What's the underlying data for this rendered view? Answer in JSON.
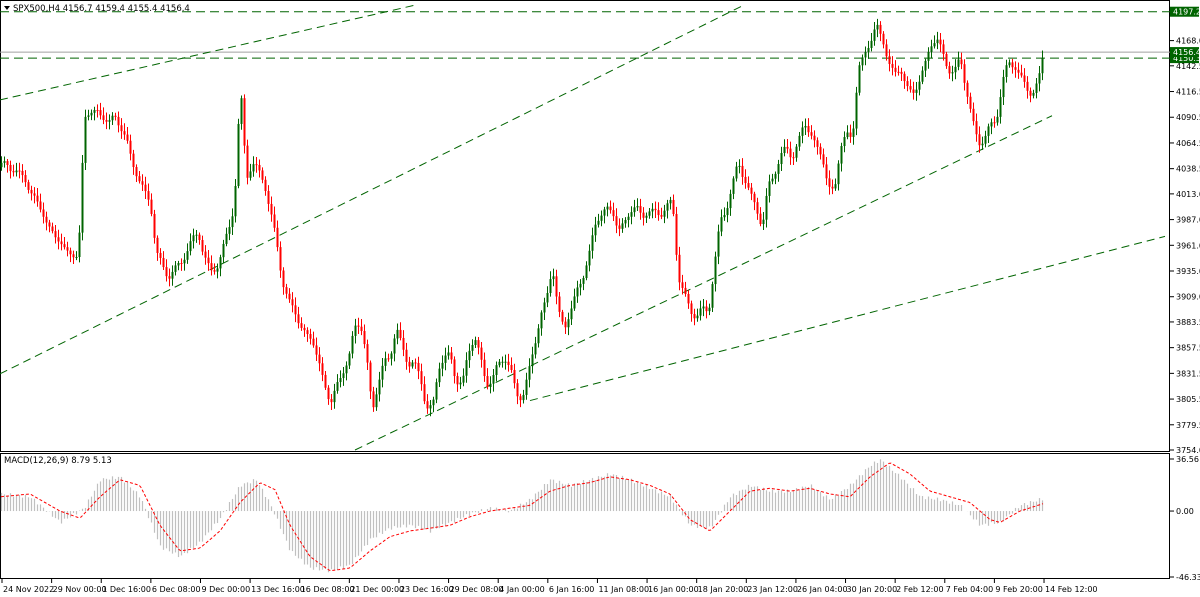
{
  "symbol_info": "SPX500,H4  4156.7 4159.4 4155.4 4156.4",
  "macd_label": "MACD(12,26,9) 8.79 5.13",
  "colors": {
    "bull": "#006400",
    "bear": "#ff0000",
    "trendline": "#006400",
    "hline": "#006400",
    "price_line": "#a0a0a0",
    "price_badge": "#006400",
    "macd_hist": "#c0c0c0",
    "macd_signal": "#ff0000"
  },
  "chart_data": {
    "type": "candlestick",
    "title": "SPX500,H4",
    "price_axis": {
      "ticks": [
        "4168.0",
        "4142.5",
        "4116.5",
        "4090.5",
        "4064.5",
        "4038.5",
        "4013.0",
        "3987.0",
        "3961.0",
        "3935.0",
        "3909.0",
        "3883.5",
        "3857.5",
        "3831.5",
        "3805.5",
        "3779.5",
        "3754.0"
      ],
      "range": [
        3754.0,
        4204.0
      ]
    },
    "horizontal_levels": [
      {
        "value": 4197.2,
        "label": "4197.2"
      },
      {
        "value": 4150.3,
        "label": "4150.3"
      }
    ],
    "current_price": {
      "value": 4156.4,
      "label": "4156.4"
    },
    "time_axis": [
      "24 Nov 2022",
      "29 Nov 00:00",
      "1 Dec 16:00",
      "6 Dec 08:00",
      "9 Dec 00:00",
      "13 Dec 16:00",
      "16 Dec 08:00",
      "21 Dec 00:00",
      "23 Dec 16:00",
      "29 Dec 08:00",
      "4 Jan 00:00",
      "6 Jan 16:00",
      "11 Jan 08:00",
      "16 Jan 00:00",
      "18 Jan 20:00",
      "23 Jan 12:00",
      "26 Jan 04:00",
      "30 Jan 20:00",
      "2 Feb 12:00",
      "7 Feb 04:00",
      "9 Feb 20:00",
      "14 Feb 12:00"
    ],
    "close_path": [
      [
        0,
        4040
      ],
      [
        6,
        4044
      ],
      [
        12,
        4038
      ],
      [
        18,
        4033
      ],
      [
        24,
        4030
      ],
      [
        30,
        4015
      ],
      [
        36,
        4005
      ],
      [
        42,
        3995
      ],
      [
        48,
        3980
      ],
      [
        54,
        3970
      ],
      [
        60,
        3965
      ],
      [
        66,
        3955
      ],
      [
        72,
        3950
      ],
      [
        78,
        3950
      ],
      [
        84,
        4090
      ],
      [
        90,
        4095
      ],
      [
        96,
        4098
      ],
      [
        102,
        4090
      ],
      [
        108,
        4085
      ],
      [
        114,
        4093
      ],
      [
        120,
        4080
      ],
      [
        126,
        4068
      ],
      [
        132,
        4045
      ],
      [
        138,
        4028
      ],
      [
        144,
        4015
      ],
      [
        150,
        4005
      ],
      [
        156,
        3953
      ],
      [
        162,
        3940
      ],
      [
        168,
        3930
      ],
      [
        174,
        3935
      ],
      [
        180,
        3943
      ],
      [
        186,
        3955
      ],
      [
        192,
        3965
      ],
      [
        198,
        3975
      ],
      [
        204,
        3950
      ],
      [
        210,
        3932
      ],
      [
        216,
        3940
      ],
      [
        222,
        3955
      ],
      [
        228,
        3975
      ],
      [
        234,
        4005
      ],
      [
        240,
        4120
      ],
      [
        246,
        4030
      ],
      [
        252,
        4045
      ],
      [
        258,
        4035
      ],
      [
        264,
        4025
      ],
      [
        270,
        3995
      ],
      [
        276,
        3965
      ],
      [
        282,
        3925
      ],
      [
        288,
        3905
      ],
      [
        294,
        3895
      ],
      [
        300,
        3880
      ],
      [
        306,
        3870
      ],
      [
        312,
        3865
      ],
      [
        318,
        3845
      ],
      [
        324,
        3820
      ],
      [
        330,
        3800
      ],
      [
        336,
        3820
      ],
      [
        342,
        3830
      ],
      [
        348,
        3845
      ],
      [
        354,
        3880
      ],
      [
        360,
        3880
      ],
      [
        366,
        3850
      ],
      [
        372,
        3795
      ],
      [
        378,
        3820
      ],
      [
        384,
        3845
      ],
      [
        390,
        3850
      ],
      [
        396,
        3875
      ],
      [
        402,
        3860
      ],
      [
        408,
        3840
      ],
      [
        414,
        3840
      ],
      [
        420,
        3830
      ],
      [
        426,
        3795
      ],
      [
        432,
        3795
      ],
      [
        438,
        3840
      ],
      [
        444,
        3845
      ],
      [
        450,
        3850
      ],
      [
        456,
        3825
      ],
      [
        462,
        3818
      ],
      [
        468,
        3855
      ],
      [
        474,
        3870
      ],
      [
        480,
        3845
      ],
      [
        486,
        3822
      ],
      [
        492,
        3825
      ],
      [
        498,
        3840
      ],
      [
        504,
        3850
      ],
      [
        510,
        3835
      ],
      [
        516,
        3810
      ],
      [
        522,
        3808
      ],
      [
        528,
        3830
      ],
      [
        534,
        3860
      ],
      [
        540,
        3890
      ],
      [
        546,
        3905
      ],
      [
        552,
        3940
      ],
      [
        558,
        3895
      ],
      [
        564,
        3875
      ],
      [
        570,
        3895
      ],
      [
        576,
        3915
      ],
      [
        582,
        3925
      ],
      [
        588,
        3950
      ],
      [
        594,
        3980
      ],
      [
        600,
        3990
      ],
      [
        606,
        4000
      ],
      [
        612,
        3995
      ],
      [
        618,
        3975
      ],
      [
        624,
        3985
      ],
      [
        630,
        3995
      ],
      [
        636,
        4000
      ],
      [
        642,
        3990
      ],
      [
        648,
        3995
      ],
      [
        654,
        3995
      ],
      [
        660,
        3992
      ],
      [
        666,
        4000
      ],
      [
        672,
        4005
      ],
      [
        678,
        3930
      ],
      [
        684,
        3910
      ],
      [
        690,
        3895
      ],
      [
        696,
        3890
      ],
      [
        702,
        3895
      ],
      [
        708,
        3895
      ],
      [
        714,
        3940
      ],
      [
        720,
        3985
      ],
      [
        726,
        4000
      ],
      [
        732,
        4020
      ],
      [
        738,
        4045
      ],
      [
        744,
        4030
      ],
      [
        750,
        4010
      ],
      [
        756,
        4000
      ],
      [
        762,
        3980
      ],
      [
        768,
        4020
      ],
      [
        774,
        4035
      ],
      [
        780,
        4050
      ],
      [
        786,
        4060
      ],
      [
        792,
        4050
      ],
      [
        798,
        4065
      ],
      [
        804,
        4085
      ],
      [
        810,
        4075
      ],
      [
        816,
        4060
      ],
      [
        822,
        4050
      ],
      [
        828,
        4020
      ],
      [
        834,
        4015
      ],
      [
        840,
        4060
      ],
      [
        846,
        4075
      ],
      [
        852,
        4068
      ],
      [
        858,
        4140
      ],
      [
        864,
        4155
      ],
      [
        870,
        4165
      ],
      [
        876,
        4185
      ],
      [
        882,
        4170
      ],
      [
        888,
        4145
      ],
      [
        894,
        4135
      ],
      [
        900,
        4140
      ],
      [
        906,
        4120
      ],
      [
        912,
        4115
      ],
      [
        918,
        4125
      ],
      [
        924,
        4140
      ],
      [
        930,
        4165
      ],
      [
        936,
        4170
      ],
      [
        942,
        4155
      ],
      [
        948,
        4140
      ],
      [
        954,
        4135
      ],
      [
        960,
        4150
      ],
      [
        966,
        4120
      ],
      [
        972,
        4085
      ],
      [
        978,
        4065
      ],
      [
        984,
        4070
      ],
      [
        990,
        4080
      ],
      [
        996,
        4090
      ],
      [
        1002,
        4125
      ],
      [
        1008,
        4145
      ],
      [
        1014,
        4145
      ],
      [
        1020,
        4130
      ],
      [
        1026,
        4120
      ],
      [
        1032,
        4115
      ],
      [
        1038,
        4125
      ],
      [
        1043,
        4156
      ]
    ],
    "trendlines": [
      {
        "p1": [
          0,
          4108
        ],
        "p2": [
          537,
          4232
        ]
      },
      {
        "p1": [
          0,
          3831
        ],
        "p2": [
          780,
          4222
        ]
      },
      {
        "p1": [
          355,
          3754
        ],
        "p2": [
          1052,
          4092
        ]
      },
      {
        "p1": [
          530,
          3804
        ],
        "p2": [
          1165,
          3970
        ]
      }
    ],
    "macd": {
      "range": [
        -46.33,
        36.56
      ],
      "ticks": [
        "36.56",
        "0.00",
        "-46.33"
      ],
      "hist_path": [
        [
          0,
          12
        ],
        [
          30,
          10
        ],
        [
          60,
          -8
        ],
        [
          84,
          2
        ],
        [
          100,
          22
        ],
        [
          120,
          24
        ],
        [
          140,
          10
        ],
        [
          160,
          -25
        ],
        [
          180,
          -32
        ],
        [
          200,
          -22
        ],
        [
          220,
          -5
        ],
        [
          240,
          18
        ],
        [
          256,
          22
        ],
        [
          270,
          5
        ],
        [
          290,
          -28
        ],
        [
          310,
          -40
        ],
        [
          330,
          -42
        ],
        [
          350,
          -38
        ],
        [
          370,
          -20
        ],
        [
          390,
          -12
        ],
        [
          410,
          -10
        ],
        [
          430,
          -14
        ],
        [
          450,
          -8
        ],
        [
          470,
          -2
        ],
        [
          490,
          2
        ],
        [
          510,
          0
        ],
        [
          530,
          8
        ],
        [
          550,
          22
        ],
        [
          570,
          18
        ],
        [
          590,
          22
        ],
        [
          610,
          26
        ],
        [
          630,
          22
        ],
        [
          650,
          16
        ],
        [
          670,
          10
        ],
        [
          690,
          -10
        ],
        [
          710,
          -12
        ],
        [
          730,
          10
        ],
        [
          750,
          18
        ],
        [
          770,
          14
        ],
        [
          790,
          14
        ],
        [
          810,
          18
        ],
        [
          830,
          8
        ],
        [
          850,
          18
        ],
        [
          870,
          32
        ],
        [
          880,
          36
        ],
        [
          900,
          24
        ],
        [
          920,
          10
        ],
        [
          940,
          8
        ],
        [
          960,
          4
        ],
        [
          980,
          -10
        ],
        [
          1000,
          -8
        ],
        [
          1020,
          4
        ],
        [
          1043,
          8.79
        ]
      ],
      "signal_path": [
        [
          0,
          10
        ],
        [
          30,
          12
        ],
        [
          60,
          0
        ],
        [
          80,
          -5
        ],
        [
          100,
          10
        ],
        [
          120,
          22
        ],
        [
          140,
          18
        ],
        [
          160,
          -10
        ],
        [
          180,
          -28
        ],
        [
          200,
          -26
        ],
        [
          220,
          -14
        ],
        [
          240,
          6
        ],
        [
          260,
          20
        ],
        [
          275,
          15
        ],
        [
          290,
          -10
        ],
        [
          310,
          -32
        ],
        [
          330,
          -42
        ],
        [
          350,
          -40
        ],
        [
          370,
          -28
        ],
        [
          390,
          -18
        ],
        [
          410,
          -14
        ],
        [
          430,
          -12
        ],
        [
          450,
          -10
        ],
        [
          470,
          -4
        ],
        [
          490,
          0
        ],
        [
          510,
          2
        ],
        [
          530,
          4
        ],
        [
          550,
          14
        ],
        [
          570,
          18
        ],
        [
          590,
          20
        ],
        [
          610,
          24
        ],
        [
          630,
          22
        ],
        [
          650,
          18
        ],
        [
          670,
          12
        ],
        [
          690,
          -6
        ],
        [
          710,
          -14
        ],
        [
          730,
          0
        ],
        [
          750,
          14
        ],
        [
          770,
          16
        ],
        [
          790,
          14
        ],
        [
          810,
          16
        ],
        [
          830,
          12
        ],
        [
          850,
          10
        ],
        [
          870,
          24
        ],
        [
          890,
          34
        ],
        [
          910,
          26
        ],
        [
          930,
          14
        ],
        [
          950,
          10
        ],
        [
          970,
          6
        ],
        [
          990,
          -6
        ],
        [
          1000,
          -8
        ],
        [
          1020,
          0
        ],
        [
          1043,
          5.13
        ]
      ]
    }
  }
}
